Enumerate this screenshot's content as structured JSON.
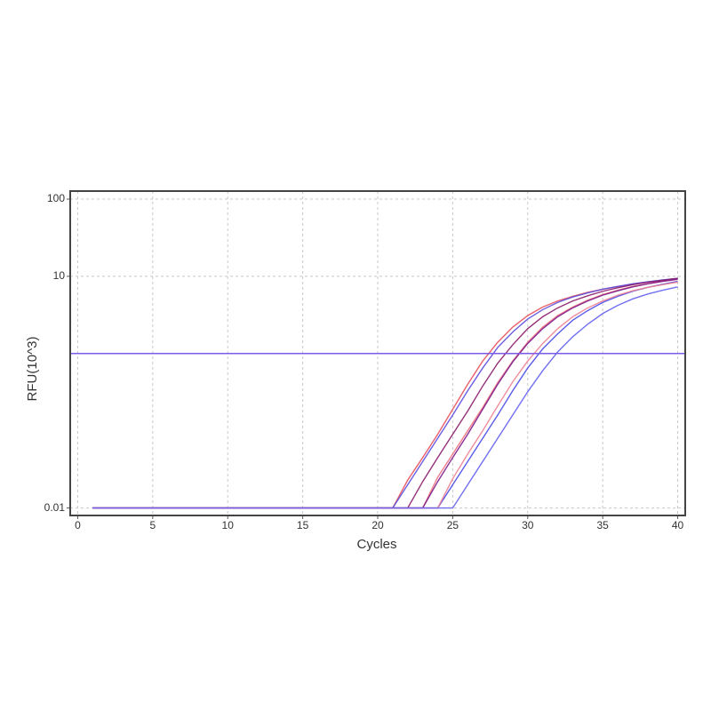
{
  "chart_data": {
    "type": "line",
    "x_label": "Cycles",
    "y_label": "RFU(10^3)",
    "log_y": true,
    "grid": true,
    "xlim": [
      -0.5,
      40.5
    ],
    "xticks": [
      0,
      5,
      10,
      15,
      20,
      25,
      30,
      35,
      40
    ],
    "ylim": [
      0.008,
      127
    ],
    "yticks": [
      0.01,
      10,
      100
    ],
    "threshold": 1,
    "threshold_color": "#7b5be6",
    "x": [
      1,
      20,
      21,
      22,
      23,
      24,
      25,
      26,
      27,
      28,
      29,
      30,
      31,
      32,
      33,
      34,
      35,
      36,
      37,
      38,
      39,
      40
    ],
    "series": [
      {
        "color": "#e8505b",
        "values": [
          0.01,
          0.01,
          0.01,
          0.023,
          0.045,
          0.09,
          0.19,
          0.4,
          0.8,
          1.4,
          2.2,
          3.1,
          4,
          4.8,
          5.5,
          6.2,
          6.8,
          7.4,
          7.9,
          8.4,
          8.8,
          9.2
        ]
      },
      {
        "color": "#5a4de0",
        "values": [
          0.01,
          0.01,
          0.01,
          0.02,
          0.04,
          0.08,
          0.16,
          0.33,
          0.65,
          1.2,
          1.9,
          2.8,
          3.7,
          4.6,
          5.4,
          6.1,
          6.8,
          7.4,
          8,
          8.5,
          9,
          9.4
        ]
      },
      {
        "color": "#8a1a6a",
        "values": [
          0.01,
          0.01,
          0.01,
          0.01,
          0.022,
          0.045,
          0.09,
          0.18,
          0.38,
          0.75,
          1.3,
          2.1,
          3,
          3.9,
          4.8,
          5.6,
          6.4,
          7.1,
          7.8,
          8.4,
          8.9,
          9.4
        ]
      },
      {
        "color": "#f07080",
        "values": [
          0.01,
          0.01,
          0.01,
          0.01,
          0.01,
          0.025,
          0.05,
          0.1,
          0.2,
          0.42,
          0.8,
          1.4,
          2.2,
          3.1,
          4,
          4.9,
          5.8,
          6.6,
          7.4,
          8,
          8.6,
          9.1
        ]
      },
      {
        "color": "#7a1a8a",
        "values": [
          0.01,
          0.01,
          0.01,
          0.01,
          0.01,
          0.022,
          0.045,
          0.09,
          0.19,
          0.4,
          0.78,
          1.35,
          2.1,
          3,
          3.9,
          4.8,
          5.7,
          6.5,
          7.3,
          8,
          8.6,
          9.2
        ]
      },
      {
        "color": "#4a4ae8",
        "values": [
          0.01,
          0.01,
          0.01,
          0.01,
          0.01,
          0.01,
          0.02,
          0.04,
          0.08,
          0.16,
          0.33,
          0.65,
          1.15,
          1.8,
          2.7,
          3.6,
          4.6,
          5.5,
          6.4,
          7.2,
          7.9,
          8.6
        ]
      },
      {
        "color": "#f08090",
        "values": [
          0.01,
          0.01,
          0.01,
          0.01,
          0.01,
          0.01,
          0.024,
          0.05,
          0.1,
          0.21,
          0.43,
          0.8,
          1.35,
          2.1,
          3,
          3.9,
          4.8,
          5.7,
          6.5,
          7.2,
          7.8,
          8.4
        ]
      },
      {
        "color": "#6060f0",
        "values": [
          0.01,
          0.01,
          0.01,
          0.01,
          0.01,
          0.01,
          0.01,
          0.02,
          0.04,
          0.08,
          0.16,
          0.32,
          0.6,
          1.05,
          1.65,
          2.4,
          3.3,
          4.2,
          5.1,
          5.9,
          6.6,
          7.3
        ]
      }
    ]
  }
}
